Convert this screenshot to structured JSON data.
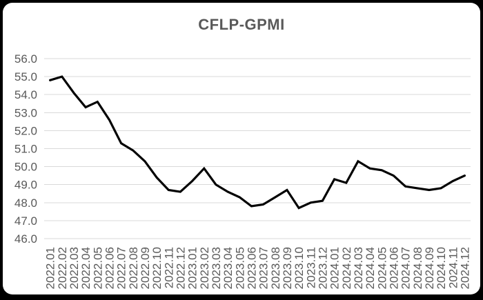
{
  "window": {
    "background_color": "#000000",
    "card_color": "#ffffff"
  },
  "chart_data": {
    "type": "line",
    "title": "CFLP-GPMI",
    "categories": [
      "2022.01",
      "2022.02",
      "2022.03",
      "2022.04",
      "2022.05",
      "2022.06",
      "2022.07",
      "2022.08",
      "2022.09",
      "2022.10",
      "2022.11",
      "2022.12",
      "2023.01",
      "2023.02",
      "2023.03",
      "2023.04",
      "2023.05",
      "2023.06",
      "2023.07",
      "2023.08",
      "2023.09",
      "2023.10",
      "2023.11",
      "2023.12",
      "2024.01",
      "2024.02",
      "2024.03",
      "2024.04",
      "2024.05",
      "2024.06",
      "2024.07",
      "2024.08",
      "2024.09",
      "2024.10",
      "2024.11",
      "2024.12"
    ],
    "series": [
      {
        "name": "CFLP-GPMI",
        "values": [
          54.8,
          55.0,
          54.1,
          53.3,
          53.6,
          52.6,
          51.3,
          50.9,
          50.3,
          49.4,
          48.7,
          48.6,
          49.2,
          49.9,
          49.0,
          48.6,
          48.3,
          47.8,
          47.9,
          48.3,
          48.7,
          47.7,
          48.0,
          48.1,
          49.3,
          49.1,
          50.3,
          49.9,
          49.8,
          49.5,
          48.9,
          48.8,
          48.7,
          48.8,
          49.2,
          49.5
        ]
      }
    ],
    "xlabel": "",
    "ylabel": "",
    "ylim": [
      46.0,
      56.0
    ],
    "ytick_labels": [
      "56.0",
      "55.0",
      "54.0",
      "53.0",
      "52.0",
      "51.0",
      "50.0",
      "49.0",
      "48.0",
      "47.0",
      "46.0"
    ],
    "grid": true,
    "legend_position": "none",
    "x_tick_rotation_degrees": 90,
    "colors": {
      "line": "#000000",
      "gridline": "#d9d9d9",
      "axis_text": "#595959",
      "title_text": "#595959"
    }
  }
}
